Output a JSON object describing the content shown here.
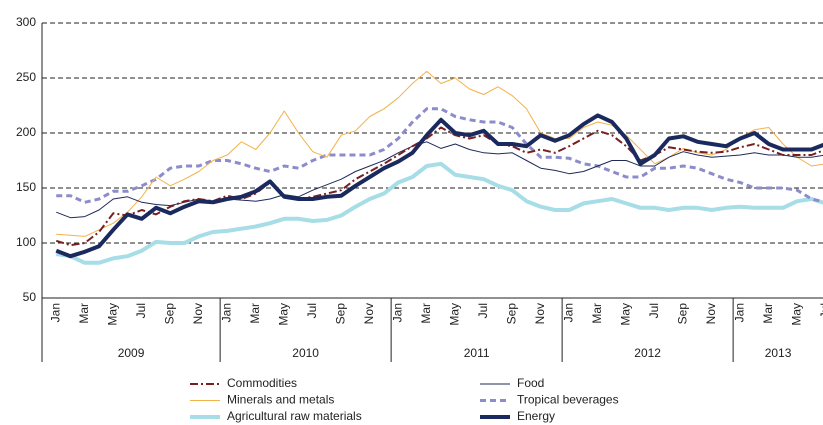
{
  "chart_data": {
    "type": "line",
    "categories": [
      "Jan",
      null,
      "Mar",
      null,
      "May",
      null,
      "Jul",
      null,
      "Sep",
      null,
      "Nov",
      null,
      "Jan",
      null,
      "Mar",
      null,
      "May",
      null,
      "Jul",
      null,
      "Sep",
      null,
      "Nov",
      null,
      "Jan",
      null,
      "Mar",
      null,
      "May",
      null,
      "Jul",
      null,
      "Sep",
      null,
      "Nov",
      null,
      "Jan",
      null,
      "Mar",
      null,
      "May",
      null,
      "Jul",
      null,
      "Sep",
      null,
      "Nov",
      null,
      "Jan",
      null,
      "Mar",
      null,
      "May",
      null,
      "Jul"
    ],
    "year_groups": [
      "2009",
      "2010",
      "2011",
      "2012",
      "2013"
    ],
    "ylim": [
      50,
      300
    ],
    "yticks": [
      50,
      100,
      150,
      200,
      250,
      300
    ],
    "grid": true,
    "legend": "bottom",
    "series": [
      {
        "name": "Commodities",
        "color": "#7a1f1f",
        "width": 2,
        "dash": "8 3 2 3",
        "values": [
          102,
          98,
          100,
          110,
          127,
          125,
          130,
          126,
          133,
          138,
          140,
          138,
          143,
          140,
          145,
          155,
          143,
          140,
          142,
          145,
          148,
          158,
          165,
          172,
          180,
          188,
          195,
          205,
          198,
          195,
          198,
          190,
          188,
          182,
          185,
          182,
          188,
          195,
          202,
          198,
          188,
          175,
          180,
          187,
          185,
          183,
          182,
          183,
          187,
          190,
          185,
          180,
          180,
          180,
          185
        ]
      },
      {
        "name": "Food",
        "color": "#1f2a5a",
        "width": 1,
        "dash": "none",
        "values": [
          128,
          123,
          124,
          130,
          140,
          142,
          137,
          135,
          134,
          137,
          140,
          138,
          140,
          139,
          138,
          140,
          144,
          142,
          148,
          153,
          158,
          165,
          170,
          175,
          182,
          188,
          192,
          186,
          190,
          185,
          182,
          181,
          182,
          175,
          168,
          166,
          163,
          165,
          170,
          175,
          175,
          170,
          170,
          178,
          183,
          180,
          178,
          179,
          180,
          182,
          180,
          180,
          178,
          178,
          180
        ]
      },
      {
        "name": "Minerals and metals",
        "color": "#f2b24a",
        "width": 1,
        "dash": "none",
        "values": [
          108,
          107,
          106,
          112,
          118,
          128,
          142,
          160,
          152,
          158,
          165,
          175,
          180,
          192,
          185,
          200,
          220,
          200,
          183,
          178,
          198,
          202,
          215,
          222,
          232,
          245,
          256,
          245,
          250,
          240,
          235,
          242,
          234,
          222,
          200,
          195,
          195,
          205,
          210,
          207,
          198,
          185,
          172,
          178,
          186,
          182,
          180,
          185,
          196,
          203,
          205,
          190,
          178,
          170,
          172
        ]
      },
      {
        "name": "Tropical beverages",
        "color": "#8c8ccc",
        "width": 3,
        "dash": "6 4",
        "values": [
          143,
          143,
          137,
          140,
          147,
          147,
          152,
          158,
          168,
          170,
          170,
          175,
          175,
          172,
          168,
          165,
          170,
          168,
          175,
          180,
          180,
          180,
          180,
          185,
          195,
          210,
          222,
          222,
          215,
          212,
          210,
          210,
          205,
          190,
          178,
          178,
          177,
          172,
          170,
          165,
          160,
          160,
          168,
          168,
          170,
          168,
          163,
          158,
          155,
          150,
          150,
          150,
          148,
          140,
          137
        ]
      },
      {
        "name": "Agricultural raw materials",
        "color": "#a6dde6",
        "width": 4,
        "dash": "none",
        "values": [
          90,
          88,
          82,
          82,
          86,
          88,
          93,
          101,
          100,
          100,
          106,
          110,
          111,
          113,
          115,
          118,
          122,
          122,
          120,
          121,
          125,
          133,
          140,
          145,
          155,
          160,
          170,
          172,
          162,
          160,
          158,
          152,
          148,
          138,
          133,
          130,
          130,
          136,
          138,
          140,
          136,
          132,
          132,
          130,
          132,
          132,
          130,
          132,
          133,
          132,
          132,
          132,
          138,
          140,
          136
        ]
      },
      {
        "name": "Energy",
        "color": "#1b2a5e",
        "width": 4,
        "dash": "none",
        "values": [
          93,
          88,
          92,
          97,
          112,
          126,
          122,
          132,
          127,
          133,
          138,
          137,
          140,
          142,
          147,
          156,
          142,
          140,
          140,
          142,
          143,
          152,
          160,
          168,
          174,
          182,
          198,
          212,
          200,
          198,
          202,
          190,
          190,
          188,
          198,
          193,
          198,
          208,
          216,
          210,
          195,
          172,
          180,
          195,
          197,
          192,
          190,
          188,
          195,
          200,
          190,
          185,
          185,
          185,
          190
        ]
      }
    ]
  }
}
